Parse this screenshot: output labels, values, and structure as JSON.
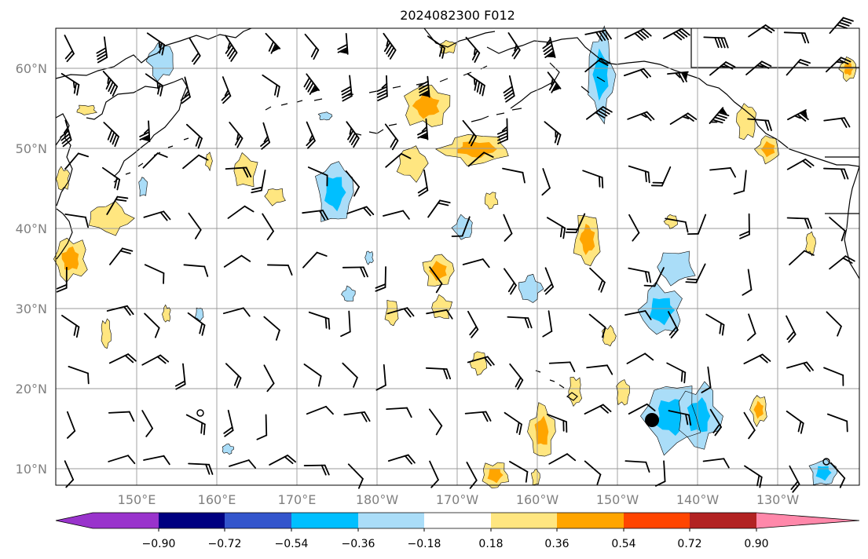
{
  "title": "2024082300 F012",
  "lat_labels": [
    "60°N",
    "50°N",
    "40°N",
    "30°N",
    "20°N",
    "10°N"
  ],
  "lon_labels": [
    "150°E",
    "160°E",
    "170°E",
    "180°W",
    "170°W",
    "160°W",
    "150°W",
    "140°W",
    "130°W"
  ],
  "colorbar": {
    "tick_labels": [
      "−0.90",
      "−0.72",
      "−0.54",
      "−0.36",
      "−0.18",
      "0.18",
      "0.36",
      "0.54",
      "0.72",
      "0.90"
    ],
    "colors": [
      "#9933cc",
      "#000080",
      "#3355cc",
      "#00bfff",
      "#aaddf8",
      "#ffffff",
      "#ffe680",
      "#ffa500",
      "#ff4500",
      "#b22222",
      "#ff88aa"
    ]
  },
  "fill_colors": {
    "pos1": "#ffe680",
    "pos2": "#ffa500",
    "neg1": "#aaddf8",
    "neg2": "#00bfff"
  },
  "grid_color": "#9a9a9a"
}
